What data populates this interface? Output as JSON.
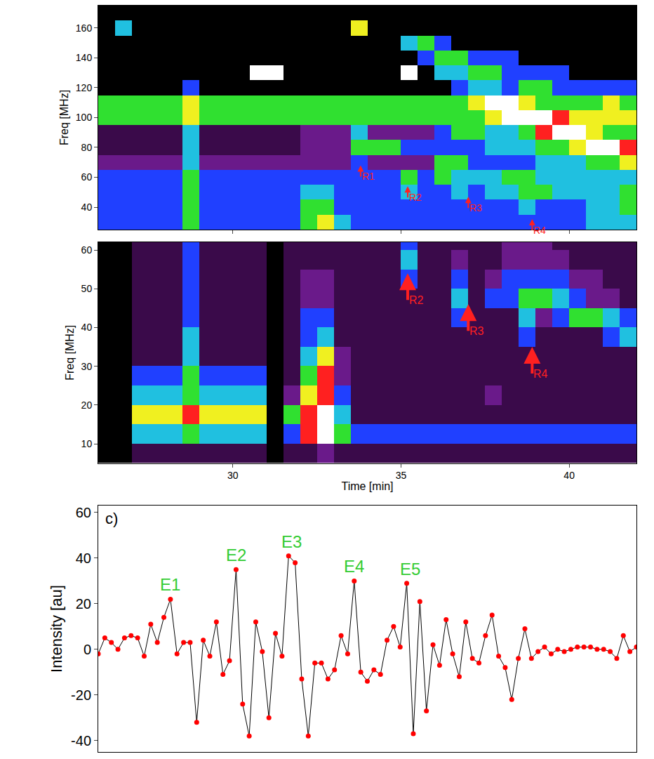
{
  "chart_data": [
    {
      "type": "heatmap",
      "y_label": "Freq [MHz]",
      "x": [
        26.25,
        26.75,
        27.25,
        27.75,
        28.25,
        28.75,
        29.25,
        29.75,
        30.25,
        30.75,
        31.25,
        31.75,
        32.25,
        32.75,
        33.25,
        33.75,
        34.25,
        34.75,
        35.25,
        35.75,
        36.25,
        36.75,
        37.25,
        37.75,
        38.25,
        38.75,
        39.25,
        39.75,
        40.25,
        40.75,
        41.25,
        41.75
      ],
      "y": [
        30,
        40,
        50,
        60,
        70,
        80,
        90,
        100,
        110,
        120,
        130,
        140,
        150,
        160,
        170
      ],
      "cells": [
        [
          3,
          3,
          3,
          3,
          3,
          5,
          3,
          3,
          3,
          3,
          3,
          3,
          5,
          6,
          4,
          3,
          3,
          3,
          3,
          3,
          3,
          3,
          3,
          3,
          3,
          3,
          3,
          3,
          3,
          4,
          4,
          4
        ],
        [
          3,
          3,
          3,
          3,
          3,
          5,
          3,
          3,
          3,
          3,
          3,
          3,
          5,
          5,
          3,
          3,
          3,
          3,
          3,
          3,
          3,
          3,
          3,
          3,
          3,
          4,
          3,
          3,
          3,
          4,
          4,
          5
        ],
        [
          3,
          3,
          3,
          3,
          3,
          5,
          3,
          3,
          3,
          3,
          3,
          3,
          4,
          4,
          3,
          3,
          3,
          3,
          4,
          3,
          3,
          4,
          3,
          4,
          4,
          5,
          5,
          4,
          4,
          4,
          4,
          5
        ],
        [
          3,
          3,
          3,
          3,
          3,
          5,
          3,
          3,
          3,
          3,
          3,
          3,
          3,
          3,
          3,
          3,
          3,
          3,
          5,
          3,
          5,
          4,
          4,
          4,
          5,
          5,
          4,
          4,
          4,
          4,
          4,
          4
        ],
        [
          2,
          2,
          2,
          2,
          2,
          4,
          2,
          2,
          2,
          2,
          2,
          2,
          2,
          2,
          2,
          3,
          2,
          2,
          2,
          2,
          5,
          5,
          3,
          3,
          3,
          3,
          4,
          4,
          4,
          5,
          5,
          6
        ],
        [
          1,
          1,
          1,
          1,
          1,
          4,
          1,
          1,
          1,
          1,
          1,
          1,
          2,
          2,
          2,
          5,
          5,
          5,
          3,
          3,
          3,
          3,
          3,
          4,
          4,
          4,
          5,
          5,
          6,
          8,
          8,
          7
        ],
        [
          1,
          1,
          1,
          1,
          1,
          4,
          1,
          1,
          1,
          1,
          1,
          1,
          2,
          2,
          2,
          4,
          2,
          2,
          2,
          2,
          3,
          5,
          5,
          4,
          4,
          5,
          7,
          8,
          8,
          6,
          5,
          5
        ],
        [
          5,
          5,
          5,
          5,
          5,
          6,
          5,
          5,
          5,
          5,
          5,
          5,
          5,
          5,
          5,
          5,
          5,
          5,
          5,
          5,
          5,
          5,
          5,
          6,
          8,
          8,
          8,
          7,
          6,
          6,
          6,
          6
        ],
        [
          5,
          5,
          5,
          5,
          5,
          6,
          5,
          5,
          5,
          5,
          5,
          5,
          5,
          5,
          5,
          5,
          5,
          5,
          5,
          5,
          5,
          5,
          6,
          8,
          8,
          6,
          5,
          5,
          5,
          5,
          6,
          5
        ],
        [
          0,
          0,
          0,
          0,
          0,
          3,
          0,
          0,
          0,
          0,
          0,
          0,
          0,
          0,
          0,
          0,
          0,
          0,
          0,
          0,
          0,
          3,
          4,
          4,
          3,
          5,
          5,
          3,
          3,
          3,
          3,
          3
        ],
        [
          0,
          0,
          0,
          0,
          0,
          0,
          0,
          0,
          0,
          8,
          8,
          0,
          0,
          0,
          0,
          0,
          0,
          0,
          8,
          0,
          4,
          4,
          5,
          5,
          3,
          3,
          3,
          3,
          0,
          0,
          0,
          0
        ],
        [
          0,
          0,
          0,
          0,
          0,
          0,
          0,
          0,
          0,
          0,
          0,
          0,
          0,
          0,
          0,
          0,
          0,
          0,
          0,
          3,
          5,
          5,
          3,
          3,
          3,
          0,
          0,
          0,
          0,
          0,
          0,
          0
        ],
        [
          0,
          0,
          0,
          0,
          0,
          0,
          0,
          0,
          0,
          0,
          0,
          0,
          0,
          0,
          0,
          0,
          0,
          0,
          4,
          5,
          3,
          0,
          0,
          0,
          0,
          0,
          0,
          0,
          0,
          0,
          0,
          0
        ],
        [
          0,
          4,
          0,
          0,
          0,
          0,
          0,
          0,
          0,
          0,
          0,
          0,
          0,
          0,
          0,
          6,
          0,
          0,
          0,
          0,
          0,
          0,
          0,
          0,
          0,
          0,
          0,
          0,
          0,
          0,
          0,
          0
        ],
        [
          0,
          0,
          0,
          0,
          0,
          0,
          0,
          0,
          0,
          0,
          0,
          0,
          0,
          0,
          0,
          0,
          0,
          0,
          0,
          0,
          0,
          0,
          0,
          0,
          0,
          0,
          0,
          0,
          0,
          0,
          0,
          0
        ]
      ],
      "zlim": [
        0,
        8
      ],
      "xlim": [
        26,
        42
      ],
      "ylim": [
        25,
        175
      ],
      "xticks": [
        30,
        35,
        40
      ],
      "yticks": [
        40,
        60,
        80,
        100,
        120,
        140,
        160
      ],
      "tick_labels": "y",
      "annotations": [
        {
          "text": "R1",
          "x": 33.8,
          "y": 68
        },
        {
          "text": "R2",
          "x": 35.2,
          "y": 54
        },
        {
          "text": "R3",
          "x": 37.0,
          "y": 47
        },
        {
          "text": "R4",
          "x": 38.9,
          "y": 32
        }
      ]
    },
    {
      "type": "heatmap",
      "x_label": "Time [min]",
      "y_label": "Freq [MHz]",
      "x": [
        26.25,
        26.75,
        27.25,
        27.75,
        28.25,
        28.75,
        29.25,
        29.75,
        30.25,
        30.75,
        31.25,
        31.75,
        32.25,
        32.75,
        33.25,
        33.75,
        34.25,
        34.75,
        35.25,
        35.75,
        36.25,
        36.75,
        37.25,
        37.75,
        38.25,
        38.75,
        39.25,
        39.75,
        40.25,
        40.75,
        41.25,
        41.75
      ],
      "y": [
        7.5,
        12.5,
        17.5,
        22.5,
        27.5,
        32.5,
        37.5,
        42.5,
        47.5,
        52.5,
        57.5,
        62.5
      ],
      "cells": [
        [
          0,
          0,
          1,
          1,
          1,
          1,
          1,
          1,
          1,
          1,
          0,
          1,
          1,
          2,
          1,
          1,
          1,
          1,
          1,
          1,
          1,
          1,
          1,
          1,
          1,
          1,
          1,
          1,
          1,
          1,
          1,
          1
        ],
        [
          0,
          0,
          4,
          4,
          4,
          5,
          4,
          4,
          4,
          4,
          0,
          3,
          7,
          8,
          5,
          3,
          3,
          3,
          3,
          3,
          3,
          3,
          3,
          3,
          3,
          3,
          3,
          3,
          3,
          3,
          3,
          3
        ],
        [
          0,
          0,
          6,
          6,
          6,
          7,
          6,
          6,
          6,
          6,
          0,
          5,
          7,
          8,
          4,
          1,
          1,
          1,
          1,
          1,
          1,
          1,
          1,
          1,
          1,
          1,
          1,
          1,
          1,
          1,
          1,
          1
        ],
        [
          0,
          0,
          4,
          4,
          4,
          5,
          4,
          4,
          4,
          4,
          0,
          2,
          6,
          7,
          3,
          1,
          1,
          1,
          1,
          1,
          1,
          1,
          1,
          2,
          1,
          1,
          1,
          1,
          1,
          1,
          1,
          1
        ],
        [
          0,
          0,
          3,
          3,
          3,
          5,
          3,
          3,
          3,
          3,
          0,
          1,
          5,
          7,
          2,
          1,
          1,
          1,
          1,
          1,
          1,
          1,
          1,
          1,
          1,
          1,
          1,
          1,
          1,
          1,
          1,
          1
        ],
        [
          0,
          0,
          1,
          1,
          1,
          4,
          1,
          1,
          1,
          1,
          0,
          1,
          4,
          6,
          2,
          1,
          1,
          1,
          1,
          1,
          1,
          1,
          1,
          1,
          1,
          1,
          1,
          1,
          1,
          1,
          1,
          1
        ],
        [
          0,
          0,
          1,
          1,
          1,
          4,
          1,
          1,
          1,
          1,
          0,
          1,
          3,
          4,
          1,
          1,
          1,
          1,
          1,
          1,
          1,
          1,
          1,
          1,
          1,
          3,
          1,
          1,
          1,
          1,
          3,
          4
        ],
        [
          0,
          0,
          1,
          1,
          1,
          3,
          1,
          1,
          1,
          1,
          0,
          1,
          3,
          3,
          1,
          1,
          1,
          1,
          1,
          1,
          1,
          3,
          1,
          1,
          1,
          4,
          2,
          3,
          5,
          5,
          4,
          3
        ],
        [
          0,
          0,
          1,
          1,
          1,
          3,
          1,
          1,
          1,
          1,
          0,
          1,
          2,
          2,
          1,
          1,
          1,
          1,
          1,
          1,
          1,
          4,
          1,
          3,
          3,
          5,
          5,
          4,
          3,
          2,
          2,
          1
        ],
        [
          0,
          0,
          1,
          1,
          1,
          3,
          1,
          1,
          1,
          1,
          0,
          1,
          2,
          2,
          1,
          1,
          1,
          1,
          3,
          1,
          1,
          3,
          1,
          2,
          3,
          3,
          3,
          3,
          2,
          2,
          1,
          1
        ],
        [
          0,
          0,
          1,
          1,
          1,
          3,
          1,
          1,
          1,
          1,
          0,
          1,
          1,
          1,
          1,
          1,
          1,
          1,
          4,
          1,
          1,
          2,
          1,
          1,
          2,
          2,
          2,
          2,
          1,
          1,
          1,
          1
        ],
        [
          0,
          0,
          1,
          1,
          1,
          3,
          1,
          1,
          1,
          1,
          0,
          1,
          1,
          1,
          1,
          1,
          1,
          1,
          3,
          1,
          1,
          1,
          1,
          1,
          2,
          2,
          2,
          1,
          1,
          1,
          1,
          1
        ]
      ],
      "zlim": [
        0,
        8
      ],
      "xlim": [
        26,
        42
      ],
      "ylim": [
        5,
        62
      ],
      "xticks": [
        30,
        35,
        40
      ],
      "yticks": [
        10,
        20,
        30,
        40,
        50,
        60
      ],
      "annotations": [
        {
          "text": "R2",
          "x": 35.2,
          "y": 54
        },
        {
          "text": "R3",
          "x": 37.0,
          "y": 46
        },
        {
          "text": "R4",
          "x": 38.9,
          "y": 35
        }
      ]
    },
    {
      "type": "line",
      "panel_label": "c)",
      "y_label": "Intensity [au]",
      "x": [
        0,
        1,
        2,
        3,
        4,
        5,
        6,
        7,
        8,
        9,
        10,
        11,
        12,
        13,
        14,
        15,
        16,
        17,
        18,
        19,
        20,
        21,
        22,
        23,
        24,
        25,
        26,
        27,
        28,
        29,
        30,
        31,
        32,
        33,
        34,
        35,
        36,
        37,
        38,
        39,
        40,
        41,
        42,
        43,
        44,
        45,
        46,
        47,
        48,
        49,
        50,
        51,
        52,
        53,
        54,
        55,
        56,
        57,
        58,
        59,
        60,
        61,
        62,
        63,
        64,
        65,
        66,
        67,
        68,
        69,
        70,
        71,
        72,
        73,
        74,
        75,
        76,
        77,
        78,
        79,
        80,
        81,
        82
      ],
      "series": [
        {
          "color": "#ff0000",
          "marker": "circle",
          "values": [
            -2,
            5,
            3,
            0,
            5,
            6,
            5,
            -3,
            11,
            3,
            14,
            22,
            -2,
            3,
            3,
            -32,
            4,
            -3,
            12,
            -11,
            -5,
            35,
            -24,
            -38,
            12,
            -1,
            -30,
            7,
            -3,
            41,
            38,
            -13,
            -38,
            -6,
            -6,
            -13,
            -9,
            6,
            -2,
            30,
            -10,
            -14,
            -9,
            -11,
            4,
            10,
            1,
            29,
            -37,
            21,
            -27,
            2,
            -7,
            13,
            -2,
            -12,
            12,
            -4,
            -6,
            6,
            15,
            -3,
            -8,
            -22,
            -4,
            9,
            -4,
            -1,
            1,
            -2,
            0,
            -1,
            0,
            1,
            1,
            1,
            0,
            0,
            -1,
            -4,
            6,
            -1,
            1
          ]
        }
      ],
      "xlim": [
        0,
        82
      ],
      "ylim": [
        -45,
        63
      ],
      "yticks": [
        -40,
        -20,
        0,
        20,
        40,
        60
      ],
      "tick_labels": "y",
      "annotations": [
        {
          "text": "E1",
          "x": 11,
          "y": 22
        },
        {
          "text": "E2",
          "x": 21,
          "y": 35
        },
        {
          "text": "E3",
          "x": 29.5,
          "y": 41
        },
        {
          "text": "E4",
          "x": 39,
          "y": 30
        },
        {
          "text": "E5",
          "x": 47.5,
          "y": 29
        }
      ]
    }
  ]
}
